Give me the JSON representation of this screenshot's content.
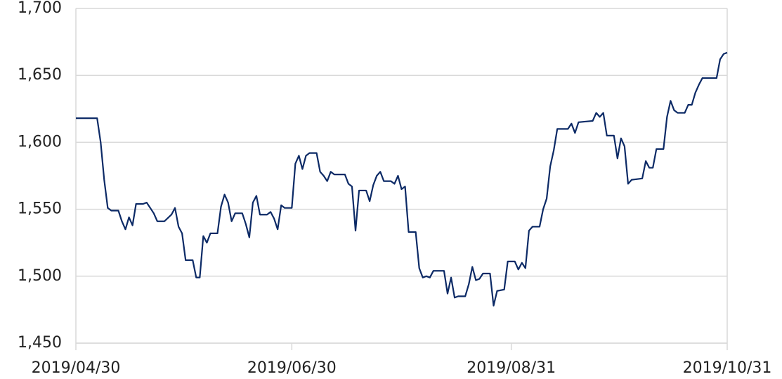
{
  "chart_data": {
    "type": "line",
    "x": [
      "2019/04/30",
      "2019/05/06",
      "2019/05/07",
      "2019/05/08",
      "2019/05/09",
      "2019/05/10",
      "2019/05/12",
      "2019/05/13",
      "2019/05/14",
      "2019/05/15",
      "2019/05/16",
      "2019/05/17",
      "2019/05/19",
      "2019/05/20",
      "2019/05/22",
      "2019/05/23",
      "2019/05/25",
      "2019/05/27",
      "2019/05/28",
      "2019/05/29",
      "2019/05/30",
      "2019/05/31",
      "2019/06/02",
      "2019/06/03",
      "2019/06/04",
      "2019/06/05",
      "2019/06/06",
      "2019/06/07",
      "2019/06/09",
      "2019/06/10",
      "2019/06/11",
      "2019/06/12",
      "2019/06/13",
      "2019/06/14",
      "2019/06/16",
      "2019/06/17",
      "2019/06/18",
      "2019/06/19",
      "2019/06/20",
      "2019/06/21",
      "2019/06/23",
      "2019/06/24",
      "2019/06/25",
      "2019/06/26",
      "2019/06/27",
      "2019/06/28",
      "2019/06/30",
      "2019/07/01",
      "2019/07/02",
      "2019/07/03",
      "2019/07/04",
      "2019/07/05",
      "2019/07/07",
      "2019/07/08",
      "2019/07/09",
      "2019/07/10",
      "2019/07/11",
      "2019/07/12",
      "2019/07/15",
      "2019/07/16",
      "2019/07/17",
      "2019/07/18",
      "2019/07/19",
      "2019/07/21",
      "2019/07/22",
      "2019/07/23",
      "2019/07/24",
      "2019/07/25",
      "2019/07/26",
      "2019/07/28",
      "2019/07/29",
      "2019/07/30",
      "2019/07/31",
      "2019/08/01",
      "2019/08/02",
      "2019/08/04",
      "2019/08/05",
      "2019/08/06",
      "2019/08/07",
      "2019/08/08",
      "2019/08/09",
      "2019/08/12",
      "2019/08/13",
      "2019/08/14",
      "2019/08/15",
      "2019/08/16",
      "2019/08/18",
      "2019/08/19",
      "2019/08/20",
      "2019/08/21",
      "2019/08/22",
      "2019/08/23",
      "2019/08/25",
      "2019/08/26",
      "2019/08/27",
      "2019/08/29",
      "2019/08/30",
      "2019/09/01",
      "2019/09/02",
      "2019/09/03",
      "2019/09/04",
      "2019/09/05",
      "2019/09/06",
      "2019/09/08",
      "2019/09/09",
      "2019/09/10",
      "2019/09/11",
      "2019/09/12",
      "2019/09/13",
      "2019/09/16",
      "2019/09/17",
      "2019/09/18",
      "2019/09/19",
      "2019/09/23",
      "2019/09/24",
      "2019/09/25",
      "2019/09/26",
      "2019/09/27",
      "2019/09/29",
      "2019/09/30",
      "2019/10/01",
      "2019/10/02",
      "2019/10/03",
      "2019/10/04",
      "2019/10/07",
      "2019/10/08",
      "2019/10/09",
      "2019/10/10",
      "2019/10/11",
      "2019/10/13",
      "2019/10/14",
      "2019/10/15",
      "2019/10/16",
      "2019/10/17",
      "2019/10/19",
      "2019/10/20",
      "2019/10/21",
      "2019/10/22",
      "2019/10/23",
      "2019/10/24",
      "2019/10/27",
      "2019/10/28",
      "2019/10/29",
      "2019/10/30",
      "2019/10/31"
    ],
    "series": [
      {
        "color": "#0c2a66",
        "values": [
          1618,
          1618,
          1600,
          1572,
          1551,
          1549,
          1549,
          1541,
          1535,
          1544,
          1538,
          1554,
          1554,
          1555,
          1547,
          1541,
          1541,
          1546,
          1551,
          1537,
          1532,
          1512,
          1512,
          1499,
          1499,
          1530,
          1525,
          1532,
          1532,
          1552,
          1561,
          1555,
          1541,
          1547,
          1547,
          1539,
          1529,
          1555,
          1560,
          1546,
          1546,
          1548,
          1543,
          1535,
          1553,
          1551,
          1551,
          1584,
          1590,
          1580,
          1590,
          1592,
          1592,
          1578,
          1575,
          1571,
          1578,
          1576,
          1576,
          1569,
          1567,
          1534,
          1564,
          1564,
          1556,
          1568,
          1575,
          1578,
          1571,
          1571,
          1569,
          1575,
          1565,
          1567,
          1533,
          1533,
          1506,
          1499,
          1500,
          1499,
          1504,
          1504,
          1487,
          1499,
          1484,
          1485,
          1485,
          1494,
          1507,
          1497,
          1498,
          1502,
          1502,
          1478,
          1489,
          1490,
          1511,
          1511,
          1505,
          1510,
          1506,
          1534,
          1537,
          1537,
          1550,
          1558,
          1582,
          1594,
          1610,
          1610,
          1614,
          1607,
          1615,
          1616,
          1622,
          1619,
          1622,
          1605,
          1605,
          1588,
          1603,
          1597,
          1569,
          1572,
          1573,
          1586,
          1581,
          1581,
          1595,
          1595,
          1619,
          1631,
          1624,
          1622,
          1622,
          1628,
          1628,
          1637,
          1643,
          1648,
          1648,
          1648,
          1662,
          1666,
          1667
        ]
      }
    ],
    "xlim": [
      "2019/04/30",
      "2019/10/31"
    ],
    "xticks": [
      "2019/04/30",
      "2019/06/30",
      "2019/08/31",
      "2019/10/31"
    ],
    "ylim": [
      1450,
      1700
    ],
    "yticks": [
      {
        "value": 1450,
        "label": "1,450"
      },
      {
        "value": 1500,
        "label": "1,500"
      },
      {
        "value": 1550,
        "label": "1,550"
      },
      {
        "value": 1600,
        "label": "1,600"
      },
      {
        "value": 1650,
        "label": "1,650"
      },
      {
        "value": 1700,
        "label": "1,700"
      }
    ],
    "grid": true
  }
}
